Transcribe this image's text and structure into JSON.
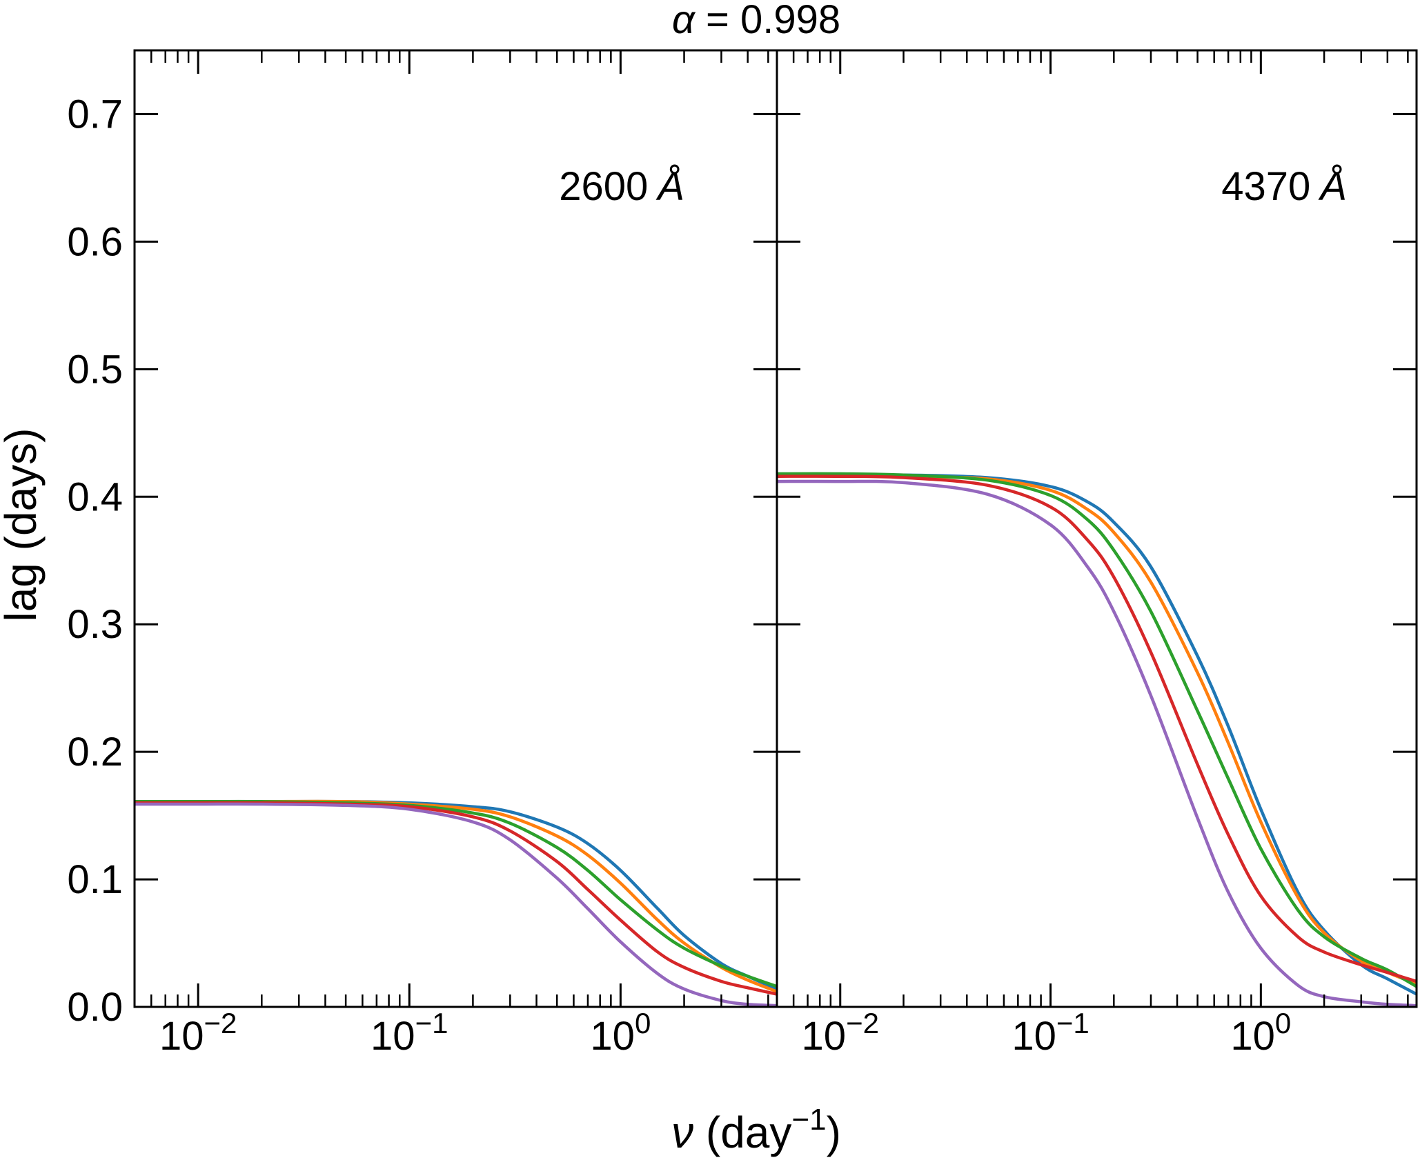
{
  "chart_data": {
    "type": "line",
    "title": "α = 0.998",
    "title_symbol": "α",
    "title_rest": " = 0.998",
    "xlabel": "ν (day⁻¹)",
    "xlabel_symbol": "ν",
    "xlabel_base": " (day",
    "xlabel_exp": "−1",
    "xlabel_close": ")",
    "ylabel": "lag (days)",
    "x_scale": "log",
    "xlim": [
      0.005,
      5.5
    ],
    "ylim": [
      0.0,
      0.75
    ],
    "y_ticks": [
      "0.0",
      "0.1",
      "0.2",
      "0.3",
      "0.4",
      "0.5",
      "0.6",
      "0.7"
    ],
    "x_tick_labels": [
      {
        "base": "10",
        "exp": "−2",
        "value": 0.01
      },
      {
        "base": "10",
        "exp": "−1",
        "value": 0.1
      },
      {
        "base": "10",
        "exp": "0",
        "value": 1
      }
    ],
    "series_colors": [
      "#1f77b4",
      "#ff7f0e",
      "#2ca02c",
      "#d62728",
      "#9467bd"
    ],
    "panels": [
      {
        "label": "2600 Å",
        "label_num": "2600",
        "label_unit": "Å",
        "series": [
          {
            "name": "s1",
            "color": "#1f77b4",
            "x": [
              0.005,
              0.01,
              0.02,
              0.05,
              0.1,
              0.2,
              0.3,
              0.5,
              0.7,
              1.0,
              1.5,
              2.0,
              3.0,
              4.0,
              5.5
            ],
            "y": [
              0.161,
              0.161,
              0.161,
              0.161,
              0.16,
              0.157,
              0.153,
              0.141,
              0.128,
              0.107,
              0.077,
              0.056,
              0.034,
              0.024,
              0.014
            ]
          },
          {
            "name": "s2",
            "color": "#ff7f0e",
            "x": [
              0.005,
              0.01,
              0.02,
              0.05,
              0.1,
              0.2,
              0.3,
              0.5,
              0.7,
              1.0,
              1.5,
              2.0,
              3.0,
              4.0,
              5.5
            ],
            "y": [
              0.161,
              0.161,
              0.161,
              0.161,
              0.159,
              0.155,
              0.149,
              0.134,
              0.119,
              0.097,
              0.068,
              0.05,
              0.031,
              0.021,
              0.012
            ]
          },
          {
            "name": "s3",
            "color": "#2ca02c",
            "x": [
              0.005,
              0.01,
              0.02,
              0.05,
              0.1,
              0.2,
              0.3,
              0.5,
              0.7,
              1.0,
              1.5,
              2.0,
              3.0,
              4.0,
              5.5
            ],
            "y": [
              0.161,
              0.161,
              0.161,
              0.16,
              0.158,
              0.152,
              0.144,
              0.125,
              0.107,
              0.084,
              0.06,
              0.046,
              0.032,
              0.024,
              0.016
            ]
          },
          {
            "name": "s4",
            "color": "#d62728",
            "x": [
              0.005,
              0.01,
              0.02,
              0.05,
              0.1,
              0.2,
              0.3,
              0.5,
              0.7,
              1.0,
              1.5,
              2.0,
              3.0,
              4.0,
              5.5
            ],
            "y": [
              0.16,
              0.16,
              0.16,
              0.159,
              0.157,
              0.149,
              0.138,
              0.114,
              0.092,
              0.068,
              0.043,
              0.031,
              0.02,
              0.015,
              0.01
            ]
          },
          {
            "name": "s5",
            "color": "#9467bd",
            "x": [
              0.005,
              0.01,
              0.02,
              0.05,
              0.1,
              0.2,
              0.3,
              0.5,
              0.7,
              1.0,
              1.5,
              2.0,
              3.0,
              4.0,
              5.5
            ],
            "y": [
              0.159,
              0.159,
              0.159,
              0.158,
              0.155,
              0.145,
              0.131,
              0.101,
              0.077,
              0.051,
              0.026,
              0.014,
              0.005,
              0.002,
              0.001
            ]
          }
        ]
      },
      {
        "label": "4370 Å",
        "label_num": "4370",
        "label_unit": "Å",
        "series": [
          {
            "name": "s1",
            "color": "#1f77b4",
            "x": [
              0.005,
              0.01,
              0.02,
              0.05,
              0.1,
              0.15,
              0.2,
              0.3,
              0.5,
              0.7,
              1.0,
              1.5,
              2.0,
              3.0,
              4.0,
              5.5
            ],
            "y": [
              0.417,
              0.417,
              0.417,
              0.415,
              0.408,
              0.396,
              0.38,
              0.345,
              0.275,
              0.22,
              0.155,
              0.09,
              0.06,
              0.033,
              0.022,
              0.01
            ]
          },
          {
            "name": "s2",
            "color": "#ff7f0e",
            "x": [
              0.005,
              0.01,
              0.02,
              0.05,
              0.1,
              0.15,
              0.2,
              0.3,
              0.5,
              0.7,
              1.0,
              1.5,
              2.0,
              3.0,
              4.0,
              5.5
            ],
            "y": [
              0.417,
              0.417,
              0.416,
              0.414,
              0.405,
              0.39,
              0.372,
              0.333,
              0.262,
              0.207,
              0.145,
              0.086,
              0.058,
              0.036,
              0.027,
              0.018
            ]
          },
          {
            "name": "s3",
            "color": "#2ca02c",
            "x": [
              0.005,
              0.01,
              0.02,
              0.05,
              0.1,
              0.15,
              0.2,
              0.3,
              0.5,
              0.7,
              1.0,
              1.5,
              2.0,
              3.0,
              4.0,
              5.5
            ],
            "y": [
              0.418,
              0.418,
              0.417,
              0.413,
              0.401,
              0.382,
              0.358,
              0.31,
              0.232,
              0.179,
              0.124,
              0.076,
              0.055,
              0.038,
              0.029,
              0.016
            ]
          },
          {
            "name": "s4",
            "color": "#d62728",
            "x": [
              0.005,
              0.01,
              0.02,
              0.05,
              0.1,
              0.15,
              0.2,
              0.3,
              0.5,
              0.7,
              1.0,
              1.5,
              2.0,
              3.0,
              4.0,
              5.5
            ],
            "y": [
              0.416,
              0.416,
              0.415,
              0.409,
              0.392,
              0.366,
              0.337,
              0.278,
              0.19,
              0.135,
              0.087,
              0.055,
              0.043,
              0.033,
              0.027,
              0.02
            ]
          },
          {
            "name": "s5",
            "color": "#9467bd",
            "x": [
              0.005,
              0.01,
              0.02,
              0.05,
              0.1,
              0.15,
              0.2,
              0.3,
              0.5,
              0.7,
              1.0,
              1.5,
              2.0,
              3.0,
              4.0,
              5.5
            ],
            "y": [
              0.412,
              0.412,
              0.411,
              0.402,
              0.378,
              0.345,
              0.31,
              0.244,
              0.148,
              0.09,
              0.046,
              0.017,
              0.008,
              0.004,
              0.002,
              0.001
            ]
          }
        ]
      }
    ]
  }
}
